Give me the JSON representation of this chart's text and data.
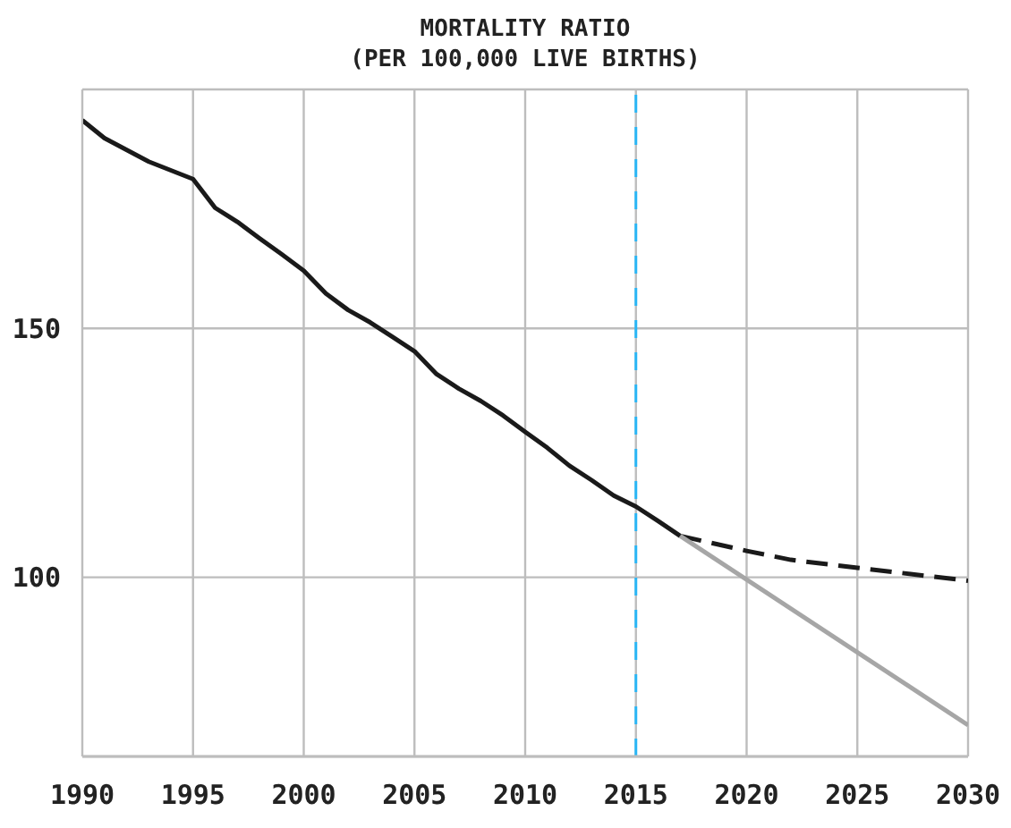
{
  "chart_data": {
    "type": "line",
    "title": "MORTALITY RATIO",
    "subtitle": "(PER 100,000 LIVE BIRTHS)",
    "xlim": [
      1990,
      2030
    ],
    "xticks": [
      1990,
      1995,
      2000,
      2005,
      2010,
      2015,
      2020,
      2025,
      2030
    ],
    "ylim": [
      64,
      198
    ],
    "yticks": [
      100,
      150
    ],
    "grid": true,
    "line_style": "solid",
    "series": [
      {
        "color": "#1a1a1a",
        "x": [
          1990,
          1991,
          1993,
          1995,
          1996,
          1997,
          1998,
          1999,
          2000,
          2001,
          2002,
          2003,
          2004,
          2005,
          2006,
          2007,
          2008,
          2009,
          2010,
          2011,
          2012,
          2013,
          2014,
          2015,
          2016,
          2017
        ],
        "values": [
          191.8,
          188.2,
          183.5,
          180,
          174.2,
          171.4,
          168.1,
          164.9,
          161.6,
          157,
          153.7,
          151.2,
          148.3,
          145.4,
          140.8,
          137.9,
          135.4,
          132.5,
          129.2,
          126,
          122.4,
          119.5,
          116.4,
          114.2,
          111.3,
          108.3
        ]
      },
      {
        "color": "#1a1a1a",
        "line_style": "dashed",
        "x": [
          2017,
          2020,
          2022,
          2025,
          2030
        ],
        "values": [
          108.3,
          105.3,
          103.5,
          101.9,
          99.3
        ]
      },
      {
        "color": "#a6a6a6",
        "x": [
          2017,
          2030
        ],
        "values": [
          108.3,
          70.3
        ]
      }
    ],
    "ref_lines": [
      {
        "axis": "x",
        "value": 2015,
        "color": "#29b6f6",
        "line_style": "dashed"
      }
    ]
  }
}
